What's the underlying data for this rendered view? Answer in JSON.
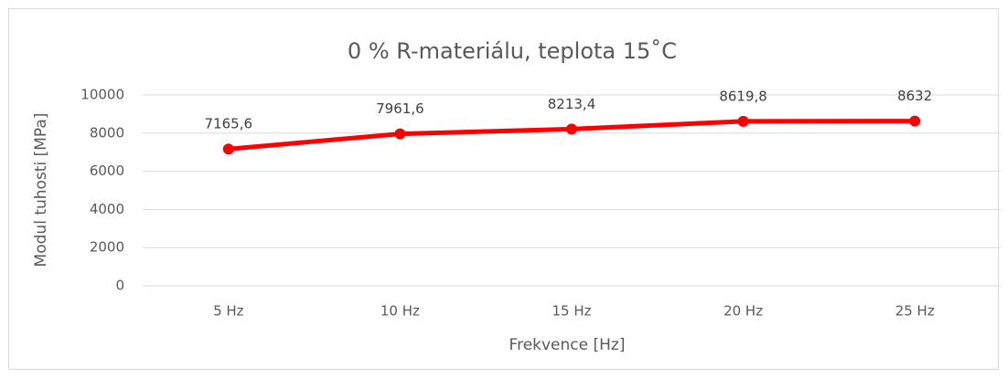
{
  "chart_data": {
    "type": "line",
    "title": "0 % R-materiálu, teplota 15˚C",
    "x_label": "Frekvence [Hz]",
    "y_label": "Modul tuhosti [MPa]",
    "categories": [
      "5 Hz",
      "10 Hz",
      "15 Hz",
      "20 Hz",
      "25 Hz"
    ],
    "values": [
      7165.6,
      7961.6,
      8213.4,
      8619.8,
      8632
    ],
    "value_labels": [
      "7165,6",
      "7961,6",
      "8213,4",
      "8619,8",
      "8632"
    ],
    "color": "#ff0000",
    "ylim": [
      0,
      10000
    ],
    "yticks": [
      0,
      2000,
      4000,
      6000,
      8000,
      10000
    ],
    "grid": true
  }
}
